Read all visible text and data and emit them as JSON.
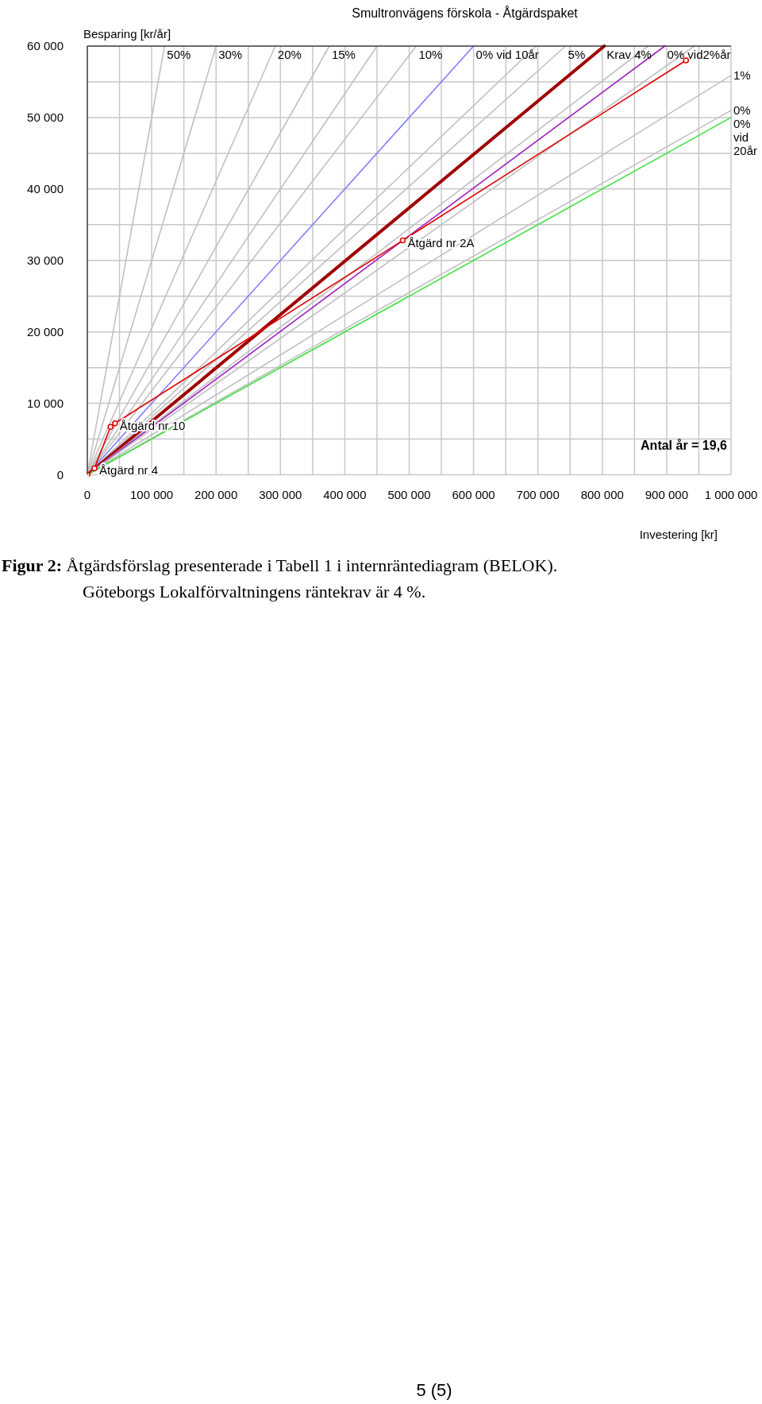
{
  "chart_data": {
    "type": "line",
    "title": "Smultronvägens förskola - Åtgärdspaket",
    "xlabel": "Investering [kr]",
    "ylabel": "Besparing [kr/år]",
    "xlim": [
      0,
      1000000
    ],
    "ylim": [
      0,
      60000
    ],
    "xticks": [
      0,
      {
        "value": 50000,
        "label": null
      },
      {
        "value": 100000,
        "label": "100 000"
      },
      {
        "value": 150000,
        "label": null
      },
      {
        "value": 200000,
        "label": "200 000"
      },
      {
        "value": 250000,
        "label": null
      },
      {
        "value": 300000,
        "label": "300 000"
      },
      {
        "value": 350000,
        "label": null
      },
      {
        "value": 400000,
        "label": "400 000"
      },
      {
        "value": 450000,
        "label": null
      },
      {
        "value": 500000,
        "label": "500 000"
      },
      {
        "value": 550000,
        "label": null
      },
      {
        "value": 600000,
        "label": "600 000"
      },
      {
        "value": 650000,
        "label": null
      },
      {
        "value": 700000,
        "label": "700 000"
      },
      {
        "value": 750000,
        "label": null
      },
      {
        "value": 800000,
        "label": "800 000"
      },
      {
        "value": 850000,
        "label": null
      },
      {
        "value": 900000,
        "label": "900 000"
      },
      {
        "value": 950000,
        "label": null
      },
      {
        "value": 1000000,
        "label": "1 000 000"
      }
    ],
    "yticks": [
      0,
      {
        "value": 5000,
        "label": null
      },
      {
        "value": 10000,
        "label": "10 000"
      },
      {
        "value": 15000,
        "label": null
      },
      {
        "value": 20000,
        "label": "20 000"
      },
      {
        "value": 25000,
        "label": null
      },
      {
        "value": 30000,
        "label": "30 000"
      },
      {
        "value": 35000,
        "label": null
      },
      {
        "value": 40000,
        "label": "40 000"
      },
      {
        "value": 45000,
        "label": null
      },
      {
        "value": 50000,
        "label": "50 000"
      },
      {
        "value": 55000,
        "label": null
      },
      {
        "value": 60000,
        "label": "60 000"
      }
    ],
    "grid": true,
    "line_style": "solid",
    "series": [
      {
        "name": "50%",
        "color": "#c0c0c0",
        "x": [
          0,
          120000
        ],
        "values": [
          0,
          60000
        ]
      },
      {
        "name": "30%",
        "color": "#c0c0c0",
        "x": [
          0,
          200000
        ],
        "values": [
          0,
          60000
        ]
      },
      {
        "name": "20%",
        "color": "#c0c0c0",
        "x": [
          0,
          292000
        ],
        "values": [
          0,
          60000
        ]
      },
      {
        "name": "15%",
        "color": "#c0c0c0",
        "x": [
          0,
          376000
        ],
        "values": [
          0,
          60000
        ]
      },
      {
        "color": "#c0c0c0",
        "x": [
          0,
          450000
        ],
        "values": [
          0,
          60000
        ]
      },
      {
        "name": "10%",
        "color": "#c0c0c0",
        "x": [
          0,
          511000
        ],
        "values": [
          0,
          60000
        ]
      },
      {
        "name": "0% vid 10år",
        "color": "#8080ff",
        "x": [
          0,
          600000
        ],
        "values": [
          0,
          60000
        ]
      },
      {
        "color": "#c0c0c0",
        "x": [
          0,
          697000
        ],
        "values": [
          0,
          60000
        ]
      },
      {
        "name": "5%",
        "color": "#c0c0c0",
        "x": [
          0,
          743000
        ],
        "values": [
          0,
          60000
        ]
      },
      {
        "name": "Krav 4%",
        "color": "#a00000",
        "x": [
          0,
          803000
        ],
        "values": [
          0,
          60000
        ]
      },
      {
        "color": "#c0c0c0",
        "x": [
          0,
          871000
        ],
        "values": [
          0,
          60000
        ]
      },
      {
        "name": "0% vid2%år",
        "color": "#a020c0",
        "x": [
          0,
          897000
        ],
        "values": [
          0,
          60000
        ]
      },
      {
        "color": "#c0c0c0",
        "x": [
          0,
          943000
        ],
        "values": [
          0,
          60000
        ]
      },
      {
        "name": "1%",
        "color": "#c0c0c0",
        "x": [
          0,
          1000000
        ],
        "values": [
          0,
          55900
        ]
      },
      {
        "name": "0%",
        "color": "#c0c0c0",
        "x": [
          0,
          1000000
        ],
        "values": [
          0,
          51000
        ]
      },
      {
        "name": "0% vid 20år",
        "color": "#40e040",
        "x": [
          0,
          1000000
        ],
        "values": [
          0,
          50000
        ]
      },
      {
        "color": "#e00000",
        "marker": "circle",
        "x": [
          0,
          11000,
          36000,
          43000,
          490000,
          930000
        ],
        "values": [
          0,
          900,
          6700,
          7200,
          32800,
          58000
        ]
      }
    ],
    "annotations": [
      {
        "text": "Åtgärd nr 4",
        "x": 11000,
        "y": 900
      },
      {
        "text": "Åtgärd nr 10",
        "x": 43000,
        "y": 7200
      },
      {
        "text": "Åtgärd nr 2A",
        "x": 490000,
        "y": 32800
      },
      "Antal år = 19,6",
      "Figur 2: Åtgärdsförslag presenterade i Tabell 1 i internräntediagram (BELOK).",
      "Göteborgs Lokalförvaltningens räntekrav är 4 %.",
      "5 (5)"
    ]
  }
}
